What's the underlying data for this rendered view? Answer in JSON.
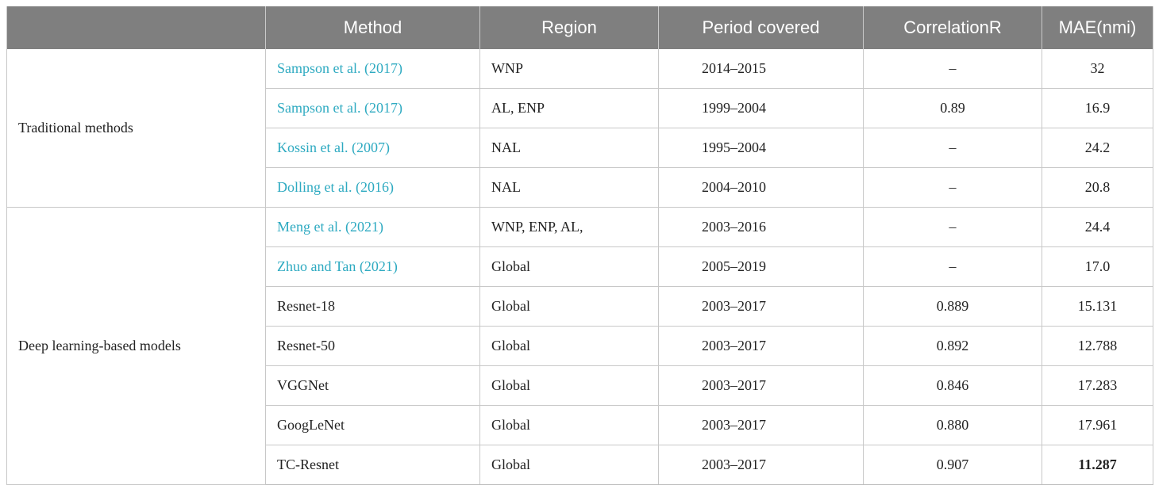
{
  "table": {
    "headers": [
      "",
      "Method",
      "Region",
      "Period covered",
      "CorrelationR",
      "MAE(nmi)"
    ],
    "groups": [
      {
        "label": "Traditional methods",
        "rows": [
          {
            "method": "Sampson et al. (2017)",
            "link": true,
            "region": "WNP",
            "period": "2014–2015",
            "correlation": "–",
            "mae": "32",
            "bold": false
          },
          {
            "method": "Sampson et al. (2017)",
            "link": true,
            "region": "AL, ENP",
            "period": "1999–2004",
            "correlation": "0.89",
            "mae": "16.9",
            "bold": false
          },
          {
            "method": "Kossin et al. (2007)",
            "link": true,
            "region": "NAL",
            "period": "1995–2004",
            "correlation": "–",
            "mae": "24.2",
            "bold": false
          },
          {
            "method": "Dolling et al. (2016)",
            "link": true,
            "region": "NAL",
            "period": "2004–2010",
            "correlation": "–",
            "mae": "20.8",
            "bold": false
          }
        ]
      },
      {
        "label": "Deep learning-based models",
        "rows": [
          {
            "method": "Meng et al. (2021)",
            "link": true,
            "region": "WNP,  ENP,  AL,",
            "period": "2003–2016",
            "correlation": "–",
            "mae": "24.4",
            "bold": false
          },
          {
            "method": "Zhuo and Tan (2021)",
            "link": true,
            "region": "Global",
            "period": "2005–2019",
            "correlation": "–",
            "mae": "17.0",
            "bold": false
          },
          {
            "method": "Resnet-18",
            "link": false,
            "region": "Global",
            "period": "2003–2017",
            "correlation": "0.889",
            "mae": "15.131",
            "bold": false
          },
          {
            "method": "Resnet-50",
            "link": false,
            "region": "Global",
            "period": "2003–2017",
            "correlation": "0.892",
            "mae": "12.788",
            "bold": false
          },
          {
            "method": "VGGNet",
            "link": false,
            "region": "Global",
            "period": "2003–2017",
            "correlation": "0.846",
            "mae": "17.283",
            "bold": false
          },
          {
            "method": "GoogLeNet",
            "link": false,
            "region": "Global",
            "period": "2003–2017",
            "correlation": "0.880",
            "mae": "17.961",
            "bold": false
          },
          {
            "method": "TC-Resnet",
            "link": false,
            "region": "Global",
            "period": "2003–2017",
            "correlation": "0.907",
            "mae": "11.287",
            "bold": true
          }
        ]
      }
    ]
  },
  "colors": {
    "header_bg": "#7f7f7f",
    "link": "#2eaac1",
    "border": "#c8c8c8"
  }
}
